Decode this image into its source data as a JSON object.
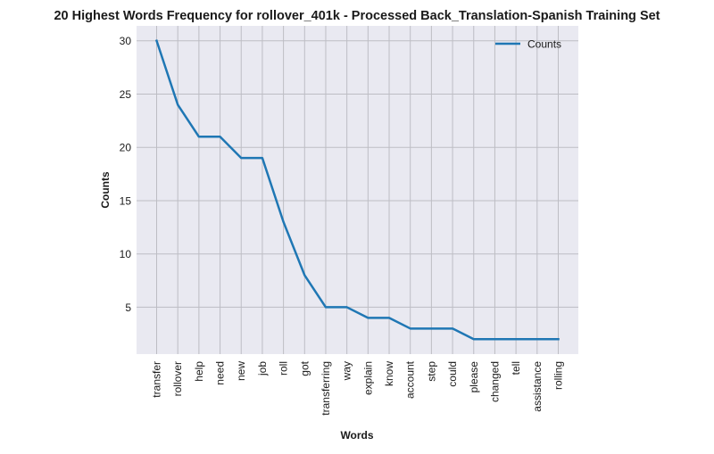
{
  "chart_data": {
    "type": "line",
    "title": "20 Highest Words Frequency for rollover_401k - Processed Back_Translation-Spanish Training Set",
    "xlabel": "Words",
    "ylabel": "Counts",
    "categories": [
      "transfer",
      "rollover",
      "help",
      "need",
      "new",
      "job",
      "roll",
      "got",
      "transferring",
      "way",
      "explain",
      "know",
      "account",
      "step",
      "could",
      "please",
      "changed",
      "tell",
      "assistance",
      "rolling"
    ],
    "series": [
      {
        "name": "Counts",
        "values": [
          30,
          24,
          21,
          21,
          19,
          19,
          13,
          8,
          5,
          5,
          4,
          4,
          3,
          3,
          3,
          2,
          2,
          2,
          2,
          2
        ],
        "color": "#1f77b4"
      }
    ],
    "ylim": [
      0.6,
      31.4
    ],
    "yticks": [
      5,
      10,
      15,
      20,
      25,
      30
    ],
    "grid": true,
    "legend": "top-right",
    "background": "#e9e9f1",
    "grid_color": "#bdbdc4"
  }
}
